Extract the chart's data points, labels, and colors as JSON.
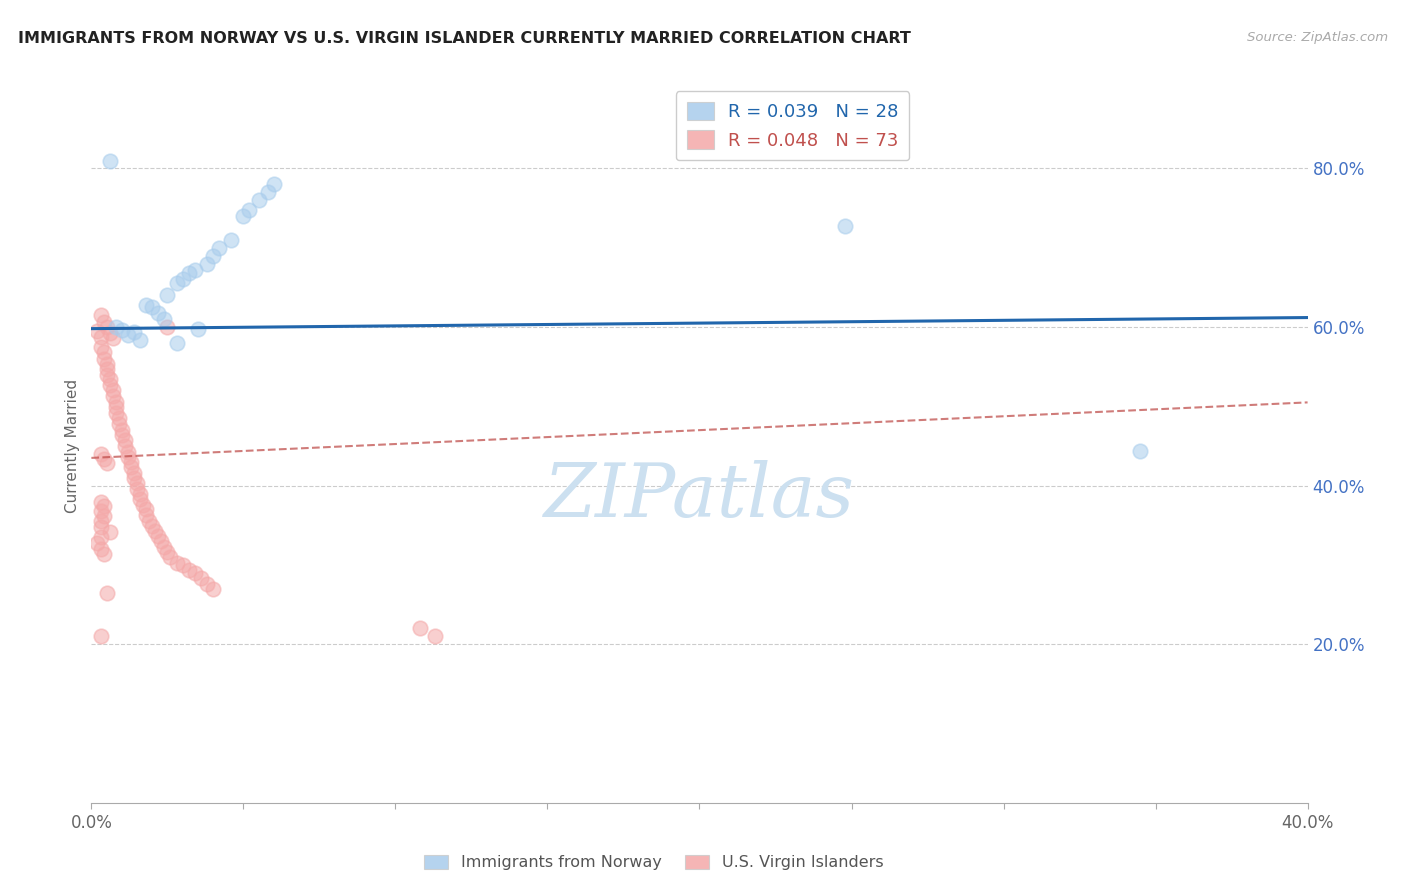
{
  "title": "IMMIGRANTS FROM NORWAY VS U.S. VIRGIN ISLANDER CURRENTLY MARRIED CORRELATION CHART",
  "source": "Source: ZipAtlas.com",
  "ylabel": "Currently Married",
  "xlim": [
    0.0,
    0.4
  ],
  "ylim": [
    0.0,
    0.9
  ],
  "x_tick_positions": [
    0.0,
    0.05,
    0.1,
    0.15,
    0.2,
    0.25,
    0.3,
    0.35,
    0.4
  ],
  "x_tick_labels": [
    "0.0%",
    "",
    "",
    "",
    "",
    "",
    "",
    "",
    "40.0%"
  ],
  "y_ticks_right": [
    0.2,
    0.4,
    0.6,
    0.8
  ],
  "y_tick_labels_right": [
    "20.0%",
    "40.0%",
    "60.0%",
    "80.0%"
  ],
  "legend_blue_r": "R = 0.039",
  "legend_blue_n": "N = 28",
  "legend_pink_r": "R = 0.048",
  "legend_pink_n": "N = 73",
  "blue_fill": "#a8ccec",
  "pink_fill": "#f4a8a8",
  "blue_line_color": "#2166ac",
  "pink_line_color": "#c0504d",
  "watermark_text": "ZIPatlas",
  "blue_trend_y0": 0.598,
  "blue_trend_y1": 0.612,
  "pink_trend_y0": 0.435,
  "pink_trend_y1": 0.505,
  "blue_x": [
    0.01,
    0.012,
    0.016,
    0.018,
    0.02,
    0.022,
    0.024,
    0.025,
    0.028,
    0.03,
    0.032,
    0.034,
    0.038,
    0.04,
    0.042,
    0.046,
    0.05,
    0.052,
    0.055,
    0.058,
    0.06,
    0.008,
    0.014,
    0.006,
    0.248,
    0.345,
    0.035,
    0.028
  ],
  "blue_y": [
    0.596,
    0.59,
    0.584,
    0.628,
    0.625,
    0.618,
    0.61,
    0.64,
    0.656,
    0.66,
    0.668,
    0.672,
    0.68,
    0.69,
    0.7,
    0.71,
    0.74,
    0.748,
    0.76,
    0.77,
    0.78,
    0.6,
    0.594,
    0.81,
    0.728,
    0.444,
    0.598,
    0.58
  ],
  "pink_x": [
    0.002,
    0.003,
    0.003,
    0.004,
    0.004,
    0.005,
    0.005,
    0.005,
    0.006,
    0.006,
    0.007,
    0.007,
    0.008,
    0.008,
    0.008,
    0.009,
    0.009,
    0.01,
    0.01,
    0.011,
    0.011,
    0.012,
    0.012,
    0.013,
    0.013,
    0.014,
    0.014,
    0.015,
    0.015,
    0.016,
    0.016,
    0.017,
    0.018,
    0.018,
    0.019,
    0.02,
    0.021,
    0.022,
    0.023,
    0.024,
    0.025,
    0.026,
    0.028,
    0.03,
    0.032,
    0.034,
    0.036,
    0.038,
    0.04,
    0.003,
    0.004,
    0.005,
    0.006,
    0.007,
    0.003,
    0.004,
    0.005,
    0.003,
    0.004,
    0.003,
    0.004,
    0.003,
    0.003,
    0.006,
    0.003,
    0.002,
    0.003,
    0.004,
    0.005,
    0.003,
    0.113,
    0.108,
    0.025
  ],
  "pink_y": [
    0.595,
    0.588,
    0.575,
    0.568,
    0.56,
    0.554,
    0.547,
    0.54,
    0.534,
    0.527,
    0.52,
    0.513,
    0.506,
    0.499,
    0.492,
    0.485,
    0.478,
    0.47,
    0.464,
    0.457,
    0.45,
    0.443,
    0.436,
    0.43,
    0.423,
    0.416,
    0.41,
    0.403,
    0.396,
    0.39,
    0.383,
    0.376,
    0.37,
    0.363,
    0.356,
    0.349,
    0.343,
    0.336,
    0.33,
    0.323,
    0.316,
    0.31,
    0.303,
    0.3,
    0.293,
    0.29,
    0.283,
    0.276,
    0.27,
    0.615,
    0.607,
    0.6,
    0.593,
    0.586,
    0.44,
    0.434,
    0.428,
    0.38,
    0.374,
    0.368,
    0.362,
    0.355,
    0.348,
    0.342,
    0.335,
    0.328,
    0.32,
    0.314,
    0.265,
    0.21,
    0.21,
    0.22,
    0.6
  ]
}
